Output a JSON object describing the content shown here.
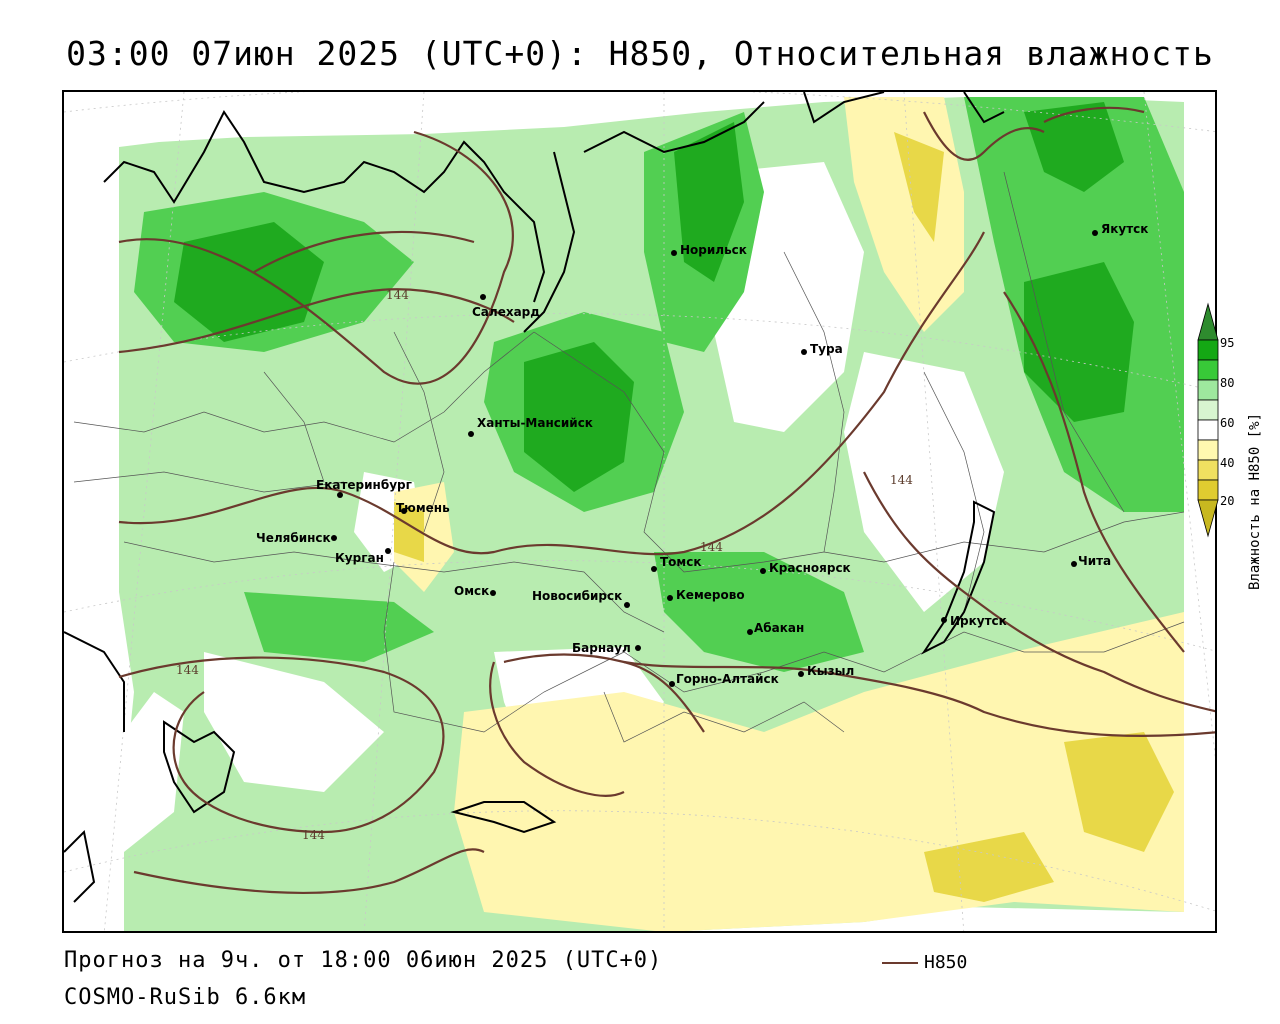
{
  "header": {
    "title": "03:00 07июн 2025 (UTC+0): H850, Относительная влажность"
  },
  "footer": {
    "forecast": "Прогноз на 9ч. от 18:00 06июн 2025 (UTC+0)",
    "model": "COSMO-RuSib 6.6км",
    "legend_label": "H850"
  },
  "colorbar": {
    "title": "Влажность на H850 [%]",
    "ticks": [
      "95",
      "80",
      "60",
      "40",
      "20"
    ],
    "colors": [
      "#2e8b2e",
      "#14a814",
      "#38c938",
      "#9ee89e",
      "#ffffff",
      "#fff8b0",
      "#e8d840",
      "#c8b820"
    ]
  },
  "map": {
    "isoline_value": "144",
    "isoline_color": "#6b3a2e",
    "cities": [
      {
        "name": "Якутск"
      },
      {
        "name": "Норильск"
      },
      {
        "name": "Салехард"
      },
      {
        "name": "Тура"
      },
      {
        "name": "Ханты-Мансийск"
      },
      {
        "name": "Екатеринбург"
      },
      {
        "name": "Тюмень"
      },
      {
        "name": "Челябинск"
      },
      {
        "name": "Курган"
      },
      {
        "name": "Томск"
      },
      {
        "name": "Красноярск"
      },
      {
        "name": "Омск"
      },
      {
        "name": "Новосибирск"
      },
      {
        "name": "Кемерово"
      },
      {
        "name": "Чита"
      },
      {
        "name": "Абакан"
      },
      {
        "name": "Иркутск"
      },
      {
        "name": "Барнаул"
      },
      {
        "name": "Кызыл"
      },
      {
        "name": "Горно-Алтайск"
      }
    ]
  }
}
